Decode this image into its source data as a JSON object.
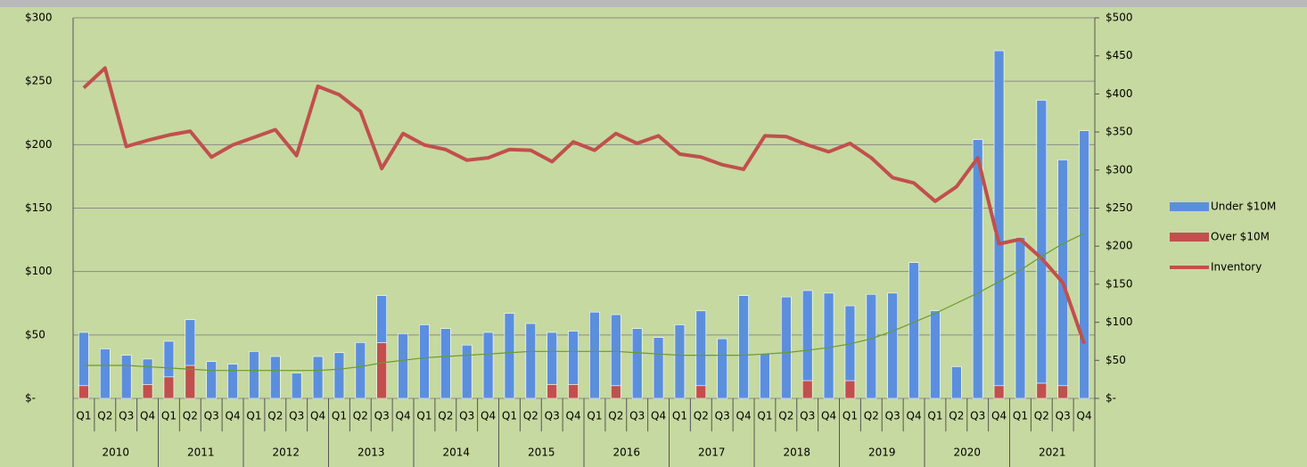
{
  "chart_data": {
    "type": "bar-line",
    "categories": [
      "Q1",
      "Q2",
      "Q3",
      "Q4",
      "Q1",
      "Q2",
      "Q3",
      "Q4",
      "Q1",
      "Q2",
      "Q3",
      "Q4",
      "Q1",
      "Q2",
      "Q3",
      "Q4",
      "Q1",
      "Q2",
      "Q3",
      "Q4",
      "Q1",
      "Q2",
      "Q3",
      "Q4",
      "Q1",
      "Q2",
      "Q3",
      "Q4",
      "Q1",
      "Q2",
      "Q3",
      "Q4",
      "Q1",
      "Q2",
      "Q3",
      "Q4",
      "Q1",
      "Q2",
      "Q3",
      "Q4",
      "Q1",
      "Q2",
      "Q3",
      "Q4",
      "Q1",
      "Q2",
      "Q3",
      "Q4"
    ],
    "x_groups": [
      "2010",
      "2011",
      "2012",
      "2013",
      "2014",
      "2015",
      "2016",
      "2017",
      "2018",
      "2019",
      "2020",
      "2021"
    ],
    "series": [
      {
        "name": "Under $10M",
        "color": "#5b8fde",
        "kind": "bar",
        "values": [
          42,
          39,
          34,
          20,
          28,
          36,
          29,
          27,
          37,
          33,
          20,
          33,
          36,
          44,
          37,
          51,
          58,
          55,
          42,
          52,
          67,
          59,
          41,
          42,
          68,
          56,
          55,
          48,
          58,
          59,
          47,
          81,
          35,
          80,
          71,
          83,
          59,
          82,
          83,
          107,
          69,
          25,
          204,
          264,
          127,
          223,
          178,
          211
        ]
      },
      {
        "name": "Over $10M",
        "color": "#c0504d",
        "kind": "bar",
        "values": [
          10,
          null,
          null,
          11,
          17,
          26,
          null,
          null,
          null,
          null,
          null,
          null,
          null,
          null,
          44,
          null,
          null,
          null,
          null,
          null,
          null,
          null,
          11,
          11,
          null,
          10,
          null,
          null,
          null,
          10,
          null,
          null,
          null,
          null,
          14,
          null,
          14,
          null,
          null,
          null,
          null,
          null,
          null,
          10,
          null,
          12,
          10,
          null
        ]
      },
      {
        "name": "Inventory",
        "color": "#c0504d",
        "kind": "line",
        "axis": "y2",
        "values": [
          408,
          434,
          331,
          339,
          346,
          351,
          317,
          333,
          343,
          353,
          319,
          410,
          399,
          377,
          302,
          348,
          333,
          327,
          313,
          316,
          327,
          326,
          311,
          337,
          326,
          348,
          335,
          345,
          321,
          317,
          307,
          301,
          345,
          344,
          333,
          324,
          335,
          316,
          290,
          283,
          259,
          278,
          316,
          203,
          209,
          184,
          152,
          72
        ]
      },
      {
        "color": "#6a9a2a",
        "kind": "trend",
        "values": [
          26,
          26,
          26,
          25,
          24,
          23,
          22,
          22,
          22,
          22,
          22,
          22,
          23,
          25,
          28,
          30,
          32,
          33,
          34,
          35,
          36,
          37,
          37,
          37,
          37,
          37,
          36,
          35,
          34,
          34,
          34,
          34,
          35,
          36,
          38,
          40,
          43,
          47,
          53,
          60,
          67,
          75,
          83,
          92,
          101,
          112,
          122,
          130
        ]
      }
    ],
    "ylim": [
      0,
      300
    ],
    "yticks": [
      {
        "value": 0,
        "label": "$-"
      },
      {
        "value": 50,
        "label": "$50"
      },
      {
        "value": 100,
        "label": "$100"
      },
      {
        "value": 150,
        "label": "$150"
      },
      {
        "value": 200,
        "label": "$200"
      },
      {
        "value": 250,
        "label": "$250"
      },
      {
        "value": 300,
        "label": "$300"
      }
    ],
    "y2lim": [
      0,
      500
    ],
    "y2ticks": [
      {
        "value": 0,
        "label": "$-"
      },
      {
        "value": 50,
        "label": "$50"
      },
      {
        "value": 100,
        "label": "$100"
      },
      {
        "value": 150,
        "label": "$150"
      },
      {
        "value": 200,
        "label": "$200"
      },
      {
        "value": 250,
        "label": "$250"
      },
      {
        "value": 300,
        "label": "$300"
      },
      {
        "value": 350,
        "label": "$350"
      },
      {
        "value": 400,
        "label": "$400"
      },
      {
        "value": 450,
        "label": "$450"
      },
      {
        "value": 500,
        "label": "$500"
      }
    ],
    "grid": true,
    "legend": "right"
  }
}
